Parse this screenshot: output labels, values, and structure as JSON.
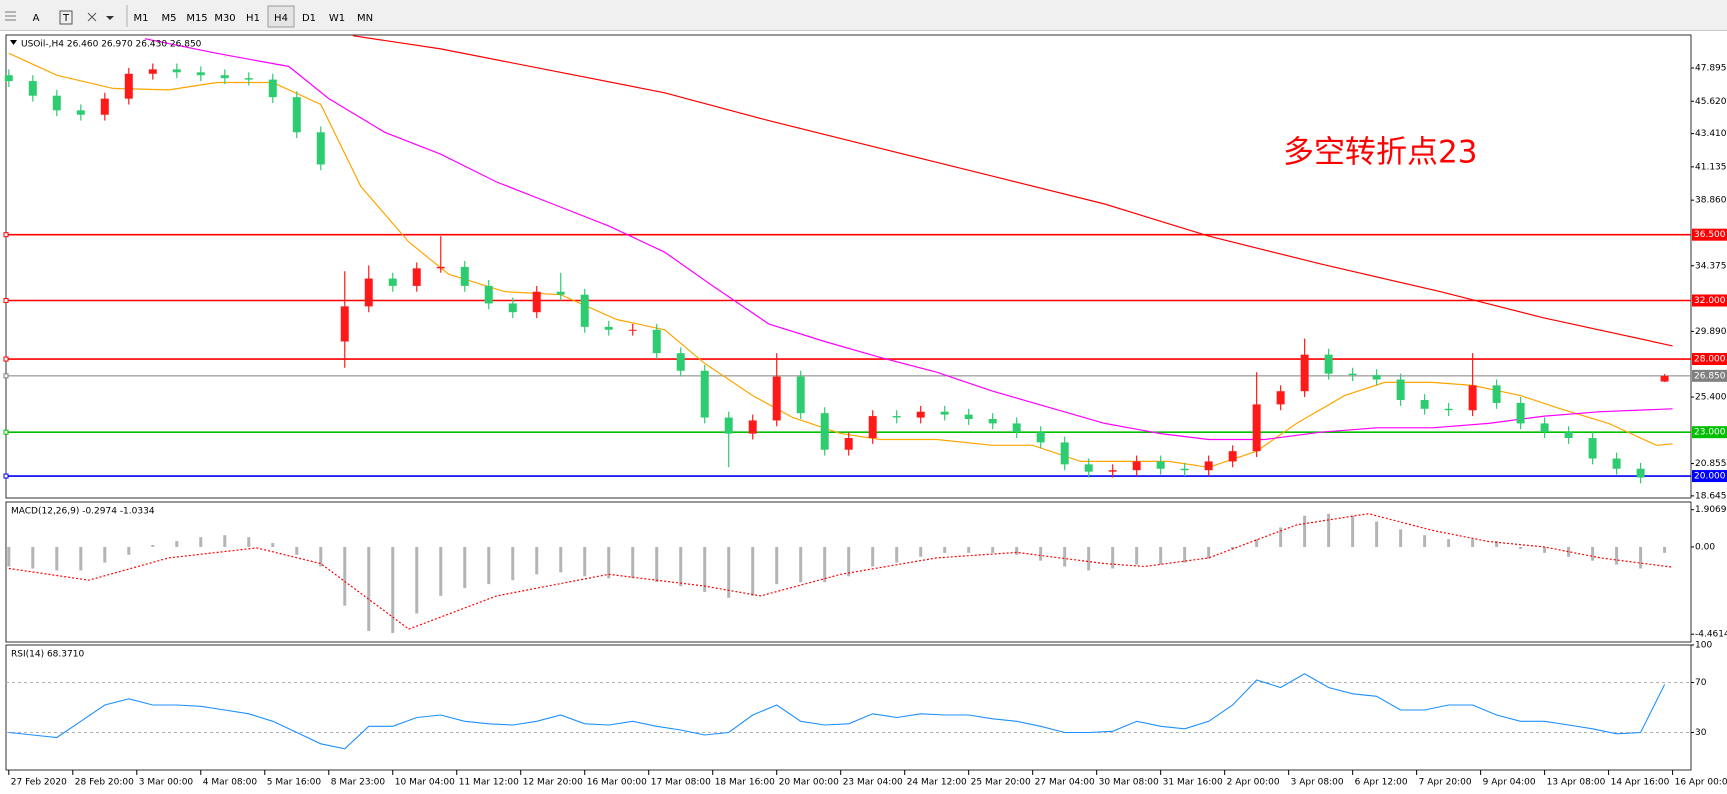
{
  "toolbar": {
    "tools": [
      "A",
      "T"
    ],
    "timeframes": [
      "M1",
      "M5",
      "M15",
      "M30",
      "H1",
      "H4",
      "D1",
      "W1",
      "MN"
    ],
    "active": "H4"
  },
  "chart_data": [
    {
      "type": "candlestick",
      "title": "USOil-,H4 26.460 26.970 26.430 26.850",
      "annotation": {
        "text": "多空转折点23",
        "color": "#ff0000"
      },
      "up_color": "#ff1a1a",
      "down_color": "#2ecc71",
      "x": [
        0,
        3,
        6,
        9,
        12,
        15,
        18,
        21,
        24,
        27,
        30,
        33,
        36,
        39,
        42,
        45,
        48,
        51,
        54,
        57,
        60,
        63,
        66,
        69,
        72,
        75,
        78,
        81,
        84,
        87,
        90,
        93,
        96,
        99,
        102,
        105,
        108,
        111,
        114,
        117,
        120,
        123,
        126,
        129,
        132,
        135,
        138,
        141,
        144,
        147,
        150,
        153,
        156,
        159,
        162,
        165,
        168,
        171,
        174,
        177,
        180,
        183,
        186,
        189,
        192,
        195,
        198,
        201,
        204,
        207
      ],
      "open": [
        47.4,
        47.0,
        46.0,
        45.0,
        44.7,
        45.8,
        47.5,
        47.8,
        47.6,
        47.4,
        47.2,
        47.1,
        45.9,
        43.5,
        29.2,
        31.6,
        33.5,
        33.0,
        34.2,
        34.3,
        33.0,
        31.8,
        31.2,
        32.6,
        32.4,
        30.2,
        30.0,
        30.0,
        28.4,
        27.2,
        24.0,
        22.9,
        23.8,
        26.8,
        24.3,
        21.8,
        22.6,
        24.1,
        24.0,
        24.4,
        24.2,
        23.9,
        23.6,
        23.0,
        22.3,
        20.8,
        20.3,
        20.4,
        21.0,
        20.5,
        20.4,
        21.0,
        21.7,
        24.9,
        25.8,
        28.3,
        27.0,
        26.9,
        26.6,
        25.2,
        24.6,
        24.5,
        26.2,
        25.0,
        23.6,
        23.0,
        22.6,
        21.2,
        20.5,
        26.46
      ],
      "high": [
        47.8,
        47.4,
        46.4,
        45.4,
        46.2,
        47.9,
        48.2,
        48.2,
        48.0,
        47.8,
        47.6,
        47.5,
        46.3,
        43.9,
        34.0,
        34.4,
        33.9,
        34.6,
        36.4,
        34.7,
        33.4,
        32.2,
        33.0,
        33.9,
        32.8,
        30.6,
        30.4,
        30.4,
        28.8,
        27.6,
        24.4,
        24.2,
        28.4,
        27.2,
        24.7,
        23.0,
        24.5,
        24.5,
        24.8,
        24.8,
        24.6,
        24.3,
        24.0,
        23.4,
        22.7,
        21.2,
        20.8,
        21.4,
        21.4,
        20.9,
        21.4,
        22.1,
        27.1,
        26.2,
        29.4,
        28.7,
        27.4,
        27.3,
        27.0,
        25.6,
        25.0,
        28.4,
        26.6,
        25.4,
        24.0,
        23.4,
        23.0,
        21.6,
        20.9,
        26.97
      ],
      "low": [
        46.6,
        45.6,
        44.6,
        44.3,
        44.3,
        45.4,
        47.1,
        47.2,
        47.0,
        46.8,
        46.7,
        45.5,
        43.1,
        40.9,
        27.4,
        31.2,
        32.6,
        32.6,
        33.9,
        32.6,
        31.4,
        30.8,
        30.8,
        32.0,
        29.8,
        29.6,
        29.6,
        28.0,
        26.8,
        23.6,
        20.6,
        22.5,
        23.4,
        23.9,
        21.4,
        21.4,
        22.2,
        23.6,
        23.6,
        23.8,
        23.5,
        23.2,
        22.6,
        21.9,
        20.4,
        19.9,
        19.9,
        20.0,
        20.1,
        20.0,
        20.0,
        20.6,
        21.3,
        24.5,
        25.4,
        26.6,
        26.5,
        26.2,
        24.8,
        24.2,
        24.1,
        24.1,
        24.6,
        23.2,
        22.6,
        22.2,
        20.8,
        20.1,
        19.5,
        26.43
      ],
      "close": [
        47.0,
        46.0,
        45.0,
        44.7,
        45.8,
        47.5,
        47.8,
        47.6,
        47.4,
        47.2,
        47.1,
        45.9,
        43.5,
        41.3,
        31.6,
        33.5,
        33.0,
        34.2,
        34.3,
        33.0,
        31.8,
        31.2,
        32.6,
        32.4,
        30.2,
        30.0,
        30.0,
        28.4,
        27.2,
        24.0,
        22.9,
        23.8,
        26.8,
        24.3,
        21.8,
        22.6,
        24.1,
        24.0,
        24.4,
        24.2,
        23.9,
        23.6,
        23.0,
        22.3,
        20.8,
        20.3,
        20.4,
        21.0,
        20.5,
        20.4,
        21.0,
        21.7,
        24.9,
        25.8,
        28.3,
        27.0,
        26.9,
        26.6,
        25.2,
        24.6,
        24.5,
        26.2,
        25.0,
        23.6,
        23.0,
        22.6,
        21.2,
        20.5,
        19.9,
        26.85
      ],
      "series": [
        {
          "color": "#ffa500",
          "x": [
            0,
            6,
            13,
            20,
            26,
            33,
            39,
            44,
            50,
            55,
            62,
            69,
            76,
            82,
            87,
            93,
            98,
            104,
            109,
            116,
            123,
            128,
            134,
            139,
            145,
            150,
            156,
            161,
            167,
            172,
            178,
            183,
            189,
            194,
            200,
            206,
            208
          ],
          "values": [
            48.9,
            47.4,
            46.5,
            46.4,
            46.9,
            46.9,
            45.4,
            39.8,
            36.0,
            33.8,
            32.6,
            32.4,
            30.7,
            30.0,
            27.7,
            25.5,
            24.0,
            22.9,
            22.5,
            22.5,
            22.1,
            22.1,
            21.0,
            21.0,
            21.0,
            20.6,
            21.7,
            23.6,
            25.5,
            26.4,
            26.4,
            26.2,
            25.5,
            24.6,
            23.6,
            22.1,
            22.2
          ]
        },
        {
          "color": "#ff00ff",
          "x": [
            17,
            26,
            35,
            40,
            47,
            54,
            61,
            68,
            75,
            82,
            88,
            95,
            102,
            109,
            116,
            123,
            130,
            137,
            144,
            150,
            157,
            164,
            171,
            178,
            185,
            192,
            199,
            208
          ],
          "values": [
            49.9,
            48.9,
            48.0,
            45.8,
            43.5,
            42.0,
            40.1,
            38.6,
            37.1,
            35.3,
            33.0,
            30.4,
            29.2,
            28.1,
            27.1,
            25.8,
            24.7,
            23.6,
            22.9,
            22.5,
            22.5,
            23.0,
            23.3,
            23.3,
            23.6,
            24.1,
            24.4,
            24.6
          ]
        },
        {
          "color": "#ff0000",
          "x": [
            43,
            54,
            68,
            82,
            95,
            109,
            123,
            137,
            150,
            164,
            179,
            192,
            208
          ],
          "values": [
            50.1,
            49.2,
            47.7,
            46.2,
            44.3,
            42.4,
            40.5,
            38.6,
            36.4,
            34.5,
            32.6,
            30.8,
            28.9
          ]
        }
      ],
      "levels": [
        {
          "value": 36.5,
          "label": "36.500",
          "color": "#ff0000"
        },
        {
          "value": 32,
          "label": "32.000",
          "color": "#ff0000"
        },
        {
          "value": 28,
          "label": "28.000",
          "color": "#ff0000"
        },
        {
          "value": 26.85,
          "label": "26.850",
          "color": "#808080"
        },
        {
          "value": 23,
          "label": "23.000",
          "color": "#00c000"
        },
        {
          "value": 20,
          "label": "20.000",
          "color": "#0000ff"
        }
      ],
      "xlim": [
        -0.35,
        210.3
      ],
      "ylim": [
        18.5,
        50.15
      ],
      "yticks": [
        47.895,
        {
          "value": 45.62,
          "label": "45.620"
        },
        {
          "value": 43.41,
          "label": "43.410"
        },
        41.135,
        {
          "value": 38.86,
          "label": "38.860"
        },
        34.375,
        {
          "value": 29.89,
          "label": "29.890"
        },
        {
          "value": 25.4,
          "label": "25.400"
        },
        20.855,
        18.645
      ]
    },
    {
      "type": "macd",
      "title": "MACD(12,26,9) -0.2974 -1.0334",
      "color": "#b4b4b4",
      "x": [
        0,
        3,
        6,
        9,
        12,
        15,
        18,
        21,
        24,
        27,
        30,
        33,
        36,
        39,
        42,
        45,
        48,
        51,
        54,
        57,
        60,
        63,
        66,
        69,
        72,
        75,
        78,
        81,
        84,
        87,
        90,
        93,
        96,
        99,
        102,
        105,
        108,
        111,
        114,
        117,
        120,
        123,
        126,
        129,
        132,
        135,
        138,
        141,
        144,
        147,
        150,
        153,
        156,
        159,
        162,
        165,
        168,
        171,
        174,
        177,
        180,
        183,
        186,
        189,
        192,
        195,
        198,
        201,
        204,
        207
      ],
      "values": [
        -1.0,
        -1.1,
        -1.2,
        -1.2,
        -0.8,
        -0.4,
        0.1,
        0.3,
        0.5,
        0.6,
        0.5,
        0.2,
        -0.4,
        -1.0,
        -3.0,
        -4.3,
        -4.4,
        -3.4,
        -2.5,
        -2.1,
        -1.9,
        -1.7,
        -1.4,
        -1.3,
        -1.5,
        -1.6,
        -1.6,
        -1.8,
        -2.0,
        -2.3,
        -2.6,
        -2.5,
        -1.9,
        -1.8,
        -1.8,
        -1.5,
        -1.0,
        -0.8,
        -0.5,
        -0.3,
        -0.3,
        -0.3,
        -0.4,
        -0.7,
        -1.0,
        -1.2,
        -1.1,
        -0.9,
        -0.9,
        -0.8,
        -0.6,
        -0.1,
        0.4,
        1.0,
        1.6,
        1.7,
        1.6,
        1.3,
        0.9,
        0.6,
        0.4,
        0.4,
        0.3,
        -0.1,
        -0.3,
        -0.5,
        -0.7,
        -0.9,
        -1.1,
        -0.2974
      ],
      "series": [
        {
          "color": "#ff0000",
          "x": [
            0,
            10,
            20,
            31,
            39,
            50,
            61,
            75,
            87,
            94,
            104,
            116,
            126,
            137,
            142,
            150,
            161,
            170,
            178,
            185,
            192,
            199,
            208
          ],
          "values": [
            -1.1,
            -1.7,
            -0.56,
            -0.05,
            -0.85,
            -4.2,
            -2.5,
            -1.4,
            -2.0,
            -2.5,
            -1.4,
            -0.56,
            -0.28,
            -0.85,
            -1.0,
            -0.56,
            1.13,
            1.7,
            0.85,
            0.28,
            0,
            -0.56,
            -1.0334
          ]
        }
      ],
      "xlim": [
        -0.35,
        210.3
      ],
      "ylim": [
        -4.86,
        2.3
      ],
      "yticks": [
        1.9069,
        {
          "value": 0,
          "label": "0.00"
        },
        -4.4614
      ]
    },
    {
      "type": "line",
      "title": "RSI(14) 68.3710",
      "color": "#1e90ff",
      "x": [
        0,
        3,
        6,
        9,
        12,
        15,
        18,
        21,
        24,
        27,
        30,
        33,
        36,
        39,
        42,
        45,
        48,
        51,
        54,
        57,
        60,
        63,
        66,
        69,
        72,
        75,
        78,
        81,
        84,
        87,
        90,
        93,
        96,
        99,
        102,
        105,
        108,
        111,
        114,
        117,
        120,
        123,
        126,
        129,
        132,
        135,
        138,
        141,
        144,
        147,
        150,
        153,
        156,
        159,
        162,
        165,
        168,
        171,
        174,
        177,
        180,
        183,
        186,
        189,
        192,
        195,
        198,
        201,
        204,
        207
      ],
      "values": [
        30,
        28,
        26,
        39,
        52,
        57,
        52,
        52,
        51,
        48,
        45,
        39,
        30,
        21,
        17,
        35,
        35,
        42,
        44,
        39,
        37,
        36,
        39,
        44,
        37,
        36,
        39,
        35,
        32,
        28,
        30,
        44,
        52,
        39,
        36,
        37,
        45,
        42,
        45,
        44,
        44,
        41,
        39,
        35,
        30,
        30,
        31,
        39,
        35,
        33,
        39,
        52,
        72,
        66,
        77,
        66,
        61,
        59,
        48,
        48,
        52,
        52,
        44,
        39,
        39,
        36,
        33,
        29,
        30,
        68.371
      ],
      "levels": [
        70,
        30
      ],
      "xlim": [
        -0.35,
        210.3
      ],
      "ylim": [
        0,
        100
      ],
      "yticks": [
        100,
        70,
        30
      ],
      "xticks": [
        {
          "value": 0,
          "label": "27 Feb 2020"
        },
        {
          "value": 8,
          "label": "28 Feb 20:00"
        },
        {
          "value": 16,
          "label": "3 Mar 00:00"
        },
        {
          "value": 24,
          "label": "4 Mar 08:00"
        },
        {
          "value": 32,
          "label": "5 Mar 16:00"
        },
        {
          "value": 40,
          "label": "8 Mar 23:00"
        },
        {
          "value": 48,
          "label": "10 Mar 04:00"
        },
        {
          "value": 56,
          "label": "11 Mar 12:00"
        },
        {
          "value": 64,
          "label": "12 Mar 20:00"
        },
        {
          "value": 72,
          "label": "16 Mar 00:00"
        },
        {
          "value": 80,
          "label": "17 Mar 08:00"
        },
        {
          "value": 88,
          "label": "18 Mar 16:00"
        },
        {
          "value": 96,
          "label": "20 Mar 00:00"
        },
        {
          "value": 104,
          "label": "23 Mar 04:00"
        },
        {
          "value": 112,
          "label": "24 Mar 12:00"
        },
        {
          "value": 120,
          "label": "25 Mar 20:00"
        },
        {
          "value": 128,
          "label": "27 Mar 04:00"
        },
        {
          "value": 136,
          "label": "30 Mar 08:00"
        },
        {
          "value": 144,
          "label": "31 Mar 16:00"
        },
        {
          "value": 152,
          "label": "2 Apr 00:00"
        },
        {
          "value": 160,
          "label": "3 Apr 08:00"
        },
        {
          "value": 168,
          "label": "6 Apr 12:00"
        },
        {
          "value": 176,
          "label": "7 Apr 20:00"
        },
        {
          "value": 184,
          "label": "9 Apr 04:00"
        },
        {
          "value": 192,
          "label": "13 Apr 08:00"
        },
        {
          "value": 200,
          "label": "14 Apr 16:00"
        },
        {
          "value": 208,
          "label": "16 Apr 00:00"
        }
      ]
    }
  ]
}
